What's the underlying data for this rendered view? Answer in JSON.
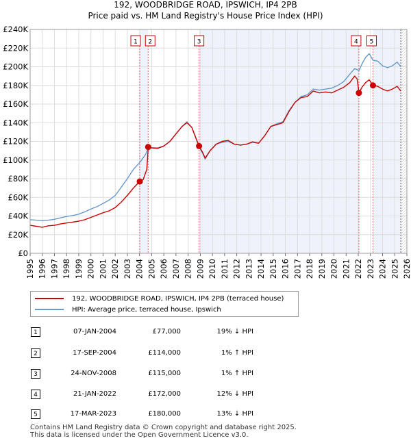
{
  "title_line1": "192, WOODBRIDGE ROAD, IPSWICH, IP4 2PB",
  "title_line2": "Price paid vs. HM Land Registry's House Price Index (HPI)",
  "colors": {
    "price": "#cc0000",
    "hpi": "#6699cc",
    "grid": "#dddddd",
    "shade": "#eef2fa",
    "marker_line": "#dd6666"
  },
  "chart_data": {
    "type": "line",
    "xlim": [
      1995,
      2026
    ],
    "ylim": [
      0,
      240000
    ],
    "xlabel": "",
    "ylabel": "",
    "x_ticks": [
      "1995",
      "1996",
      "1997",
      "1998",
      "1999",
      "2000",
      "2001",
      "2002",
      "2003",
      "2004",
      "2005",
      "2006",
      "2007",
      "2008",
      "2009",
      "2010",
      "2011",
      "2012",
      "2013",
      "2014",
      "2015",
      "2016",
      "2017",
      "2018",
      "2019",
      "2020",
      "2021",
      "2022",
      "2023",
      "2024",
      "2025",
      "2026"
    ],
    "y_ticks": [
      {
        "value": 0,
        "label": "£0"
      },
      {
        "value": 20000,
        "label": "£20K"
      },
      {
        "value": 40000,
        "label": "£40K"
      },
      {
        "value": 60000,
        "label": "£60K"
      },
      {
        "value": 80000,
        "label": "£80K"
      },
      {
        "value": 100000,
        "label": "£100K"
      },
      {
        "value": 120000,
        "label": "£120K"
      },
      {
        "value": 140000,
        "label": "£140K"
      },
      {
        "value": 160000,
        "label": "£160K"
      },
      {
        "value": 180000,
        "label": "£180K"
      },
      {
        "value": 200000,
        "label": "£200K"
      },
      {
        "value": 220000,
        "label": "£220K"
      },
      {
        "value": 240000,
        "label": "£240K"
      }
    ],
    "series": [
      {
        "name": "192, WOODBRIDGE ROAD, IPSWICH, IP4 2PB (terraced house)",
        "color": "#cc0000",
        "points": [
          [
            1995.0,
            30000
          ],
          [
            1995.5,
            29000
          ],
          [
            1996.0,
            28000
          ],
          [
            1996.5,
            29500
          ],
          [
            1997.0,
            30000
          ],
          [
            1997.5,
            31500
          ],
          [
            1998.0,
            32500
          ],
          [
            1998.5,
            33500
          ],
          [
            1999.0,
            34500
          ],
          [
            1999.5,
            36000
          ],
          [
            2000.0,
            38500
          ],
          [
            2000.5,
            41000
          ],
          [
            2001.0,
            43500
          ],
          [
            2001.5,
            45500
          ],
          [
            2002.0,
            49000
          ],
          [
            2002.5,
            55000
          ],
          [
            2003.0,
            62000
          ],
          [
            2003.5,
            70000
          ],
          [
            2004.0,
            77000
          ],
          [
            2004.3,
            79000
          ],
          [
            2004.6,
            90000
          ],
          [
            2004.72,
            114000
          ],
          [
            2005.0,
            113000
          ],
          [
            2005.5,
            112500
          ],
          [
            2006.0,
            115000
          ],
          [
            2006.5,
            120000
          ],
          [
            2007.0,
            128000
          ],
          [
            2007.5,
            136000
          ],
          [
            2007.9,
            140000
          ],
          [
            2008.3,
            135000
          ],
          [
            2008.9,
            115000
          ],
          [
            2009.2,
            108000
          ],
          [
            2009.4,
            102000
          ],
          [
            2009.8,
            110000
          ],
          [
            2010.3,
            117000
          ],
          [
            2010.8,
            120000
          ],
          [
            2011.3,
            121000
          ],
          [
            2011.8,
            117000
          ],
          [
            2012.3,
            116000
          ],
          [
            2012.8,
            117000
          ],
          [
            2013.3,
            119500
          ],
          [
            2013.8,
            118000
          ],
          [
            2014.3,
            126000
          ],
          [
            2014.8,
            136000
          ],
          [
            2015.3,
            138000
          ],
          [
            2015.8,
            140000
          ],
          [
            2016.3,
            152000
          ],
          [
            2016.8,
            162000
          ],
          [
            2017.3,
            167000
          ],
          [
            2017.8,
            168000
          ],
          [
            2018.3,
            174000
          ],
          [
            2018.8,
            172000
          ],
          [
            2019.3,
            173000
          ],
          [
            2019.8,
            172000
          ],
          [
            2020.3,
            175000
          ],
          [
            2020.8,
            178000
          ],
          [
            2021.3,
            183000
          ],
          [
            2021.7,
            190000
          ],
          [
            2021.9,
            187000
          ],
          [
            2022.06,
            172000
          ],
          [
            2022.3,
            178000
          ],
          [
            2022.6,
            183000
          ],
          [
            2022.9,
            186000
          ],
          [
            2023.21,
            180000
          ],
          [
            2023.6,
            179000
          ],
          [
            2024.0,
            176000
          ],
          [
            2024.4,
            174000
          ],
          [
            2024.8,
            176000
          ],
          [
            2025.2,
            179000
          ],
          [
            2025.5,
            174000
          ]
        ]
      },
      {
        "name": "HPI: Average price, terraced house, Ipswich",
        "color": "#6699cc",
        "points": [
          [
            1995.0,
            36000
          ],
          [
            1995.5,
            35500
          ],
          [
            1996.0,
            35000
          ],
          [
            1996.5,
            35500
          ],
          [
            1997.0,
            36500
          ],
          [
            1997.5,
            38000
          ],
          [
            1998.0,
            39500
          ],
          [
            1998.5,
            40500
          ],
          [
            1999.0,
            42000
          ],
          [
            1999.5,
            44500
          ],
          [
            2000.0,
            47500
          ],
          [
            2000.5,
            50000
          ],
          [
            2001.0,
            53500
          ],
          [
            2001.5,
            57000
          ],
          [
            2002.0,
            62000
          ],
          [
            2002.5,
            71000
          ],
          [
            2003.0,
            80000
          ],
          [
            2003.5,
            90000
          ],
          [
            2004.0,
            97000
          ],
          [
            2004.5,
            106000
          ],
          [
            2004.72,
            113000
          ],
          [
            2005.0,
            113000
          ],
          [
            2005.5,
            113000
          ],
          [
            2006.0,
            115000
          ],
          [
            2006.5,
            120000
          ],
          [
            2007.0,
            128000
          ],
          [
            2007.5,
            136000
          ],
          [
            2007.9,
            141000
          ],
          [
            2008.3,
            135000
          ],
          [
            2008.9,
            114000
          ],
          [
            2009.2,
            107000
          ],
          [
            2009.4,
            101000
          ],
          [
            2009.8,
            110000
          ],
          [
            2010.3,
            117000
          ],
          [
            2010.8,
            119000
          ],
          [
            2011.3,
            120000
          ],
          [
            2011.8,
            117000
          ],
          [
            2012.3,
            116000
          ],
          [
            2012.8,
            117000
          ],
          [
            2013.3,
            119000
          ],
          [
            2013.8,
            118000
          ],
          [
            2014.3,
            126000
          ],
          [
            2014.8,
            136000
          ],
          [
            2015.3,
            139000
          ],
          [
            2015.8,
            141000
          ],
          [
            2016.3,
            153000
          ],
          [
            2016.8,
            162000
          ],
          [
            2017.3,
            168000
          ],
          [
            2017.8,
            170000
          ],
          [
            2018.3,
            176000
          ],
          [
            2018.8,
            175000
          ],
          [
            2019.3,
            176000
          ],
          [
            2019.8,
            177000
          ],
          [
            2020.3,
            180000
          ],
          [
            2020.8,
            184000
          ],
          [
            2021.3,
            192000
          ],
          [
            2021.7,
            198000
          ],
          [
            2022.06,
            196000
          ],
          [
            2022.3,
            203000
          ],
          [
            2022.6,
            210000
          ],
          [
            2022.9,
            214000
          ],
          [
            2023.21,
            207000
          ],
          [
            2023.6,
            206000
          ],
          [
            2024.0,
            201000
          ],
          [
            2024.4,
            199000
          ],
          [
            2024.8,
            201000
          ],
          [
            2025.2,
            205000
          ],
          [
            2025.5,
            200000
          ]
        ]
      }
    ],
    "sales": [
      {
        "label": "1",
        "year": 2004.02,
        "price": 77000
      },
      {
        "label": "2",
        "year": 2004.71,
        "price": 114000
      },
      {
        "label": "3",
        "year": 2008.9,
        "price": 115000
      },
      {
        "label": "4",
        "year": 2022.05,
        "price": 172000
      },
      {
        "label": "5",
        "year": 2023.21,
        "price": 180000
      }
    ],
    "shaded_ranges": [
      [
        2004.02,
        2004.71
      ],
      [
        2008.9,
        2022.05
      ],
      [
        2023.21,
        2025.5
      ]
    ]
  },
  "legend": {
    "price_label": "192, WOODBRIDGE ROAD, IPSWICH, IP4 2PB (terraced house)",
    "hpi_label": "HPI: Average price, terraced house, Ipswich"
  },
  "transactions": [
    {
      "num": "1",
      "date": "07-JAN-2004",
      "price": "£77,000",
      "hpi": "19% ↓ HPI"
    },
    {
      "num": "2",
      "date": "17-SEP-2004",
      "price": "£114,000",
      "hpi": "1% ↑ HPI"
    },
    {
      "num": "3",
      "date": "24-NOV-2008",
      "price": "£115,000",
      "hpi": "1% ↑ HPI"
    },
    {
      "num": "4",
      "date": "21-JAN-2022",
      "price": "£172,000",
      "hpi": "12% ↓ HPI"
    },
    {
      "num": "5",
      "date": "17-MAR-2023",
      "price": "£180,000",
      "hpi": "13% ↓ HPI"
    }
  ],
  "footer": {
    "line1": "Contains HM Land Registry data © Crown copyright and database right 2025.",
    "line2": "This data is licensed under the Open Government Licence v3.0."
  }
}
